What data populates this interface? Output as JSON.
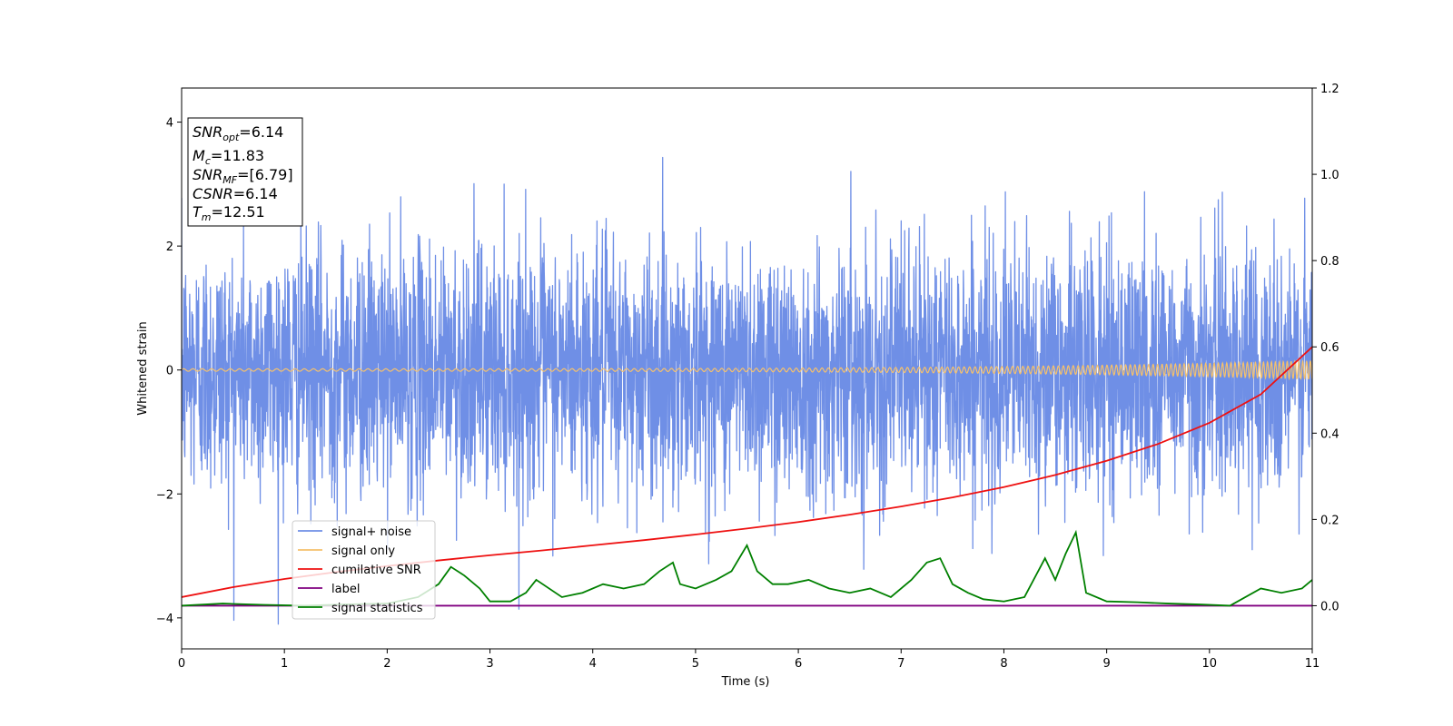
{
  "chart_data": {
    "type": "line",
    "xlabel": "Time (s)",
    "ylabel": "Whitened strain",
    "xlim": [
      0,
      11
    ],
    "ylim_left": [
      -4.5,
      4.55
    ],
    "ylim_right": [
      -0.1,
      1.2
    ],
    "x_ticks": [
      "0",
      "1",
      "2",
      "3",
      "4",
      "5",
      "6",
      "7",
      "8",
      "9",
      "10",
      "11"
    ],
    "y_ticks_left": [
      "−4",
      "−2",
      "0",
      "2",
      "4"
    ],
    "y_ticks_left_values": [
      -4,
      -2,
      0,
      2,
      4
    ],
    "y_ticks_right": [
      "0.0",
      "0.2",
      "0.4",
      "0.6",
      "0.8",
      "1.0",
      "1.2"
    ],
    "y_ticks_right_values": [
      0.0,
      0.2,
      0.4,
      0.6,
      0.8,
      1.0,
      1.2
    ],
    "legend_position": "lower-left",
    "info_box": [
      {
        "main": "SNR",
        "sub": "opt",
        "rest": "=6.14"
      },
      {
        "main": "M",
        "sub": "c",
        "rest": "=11.83"
      },
      {
        "main": "SNR",
        "sub": "MF",
        "rest": "=[6.79]"
      },
      {
        "main": "CSNR",
        "sub": "",
        "rest": "=6.14"
      },
      {
        "main": "T",
        "sub": "m",
        "rest": "=12.51"
      }
    ],
    "series": [
      {
        "name": "signal+ noise",
        "color": "#6f8fe6",
        "axis": "left",
        "kind": "noise",
        "noise_sigma": 1.0,
        "amplitude_range": [
          -4.1,
          4.15
        ]
      },
      {
        "name": "signal only",
        "color": "#f5c16c",
        "axis": "left",
        "kind": "chirp",
        "amplitude_start": 0.02,
        "amplitude_end": 0.15
      },
      {
        "name": "cumilative SNR",
        "color": "#ee1111",
        "axis": "right",
        "x": [
          0,
          0.5,
          1,
          1.5,
          2,
          2.5,
          3,
          3.5,
          4,
          4.5,
          5,
          5.5,
          6,
          6.5,
          7,
          7.5,
          8,
          8.5,
          9,
          9.5,
          10,
          10.5,
          11
        ],
        "y": [
          0.02,
          0.043,
          0.062,
          0.078,
          0.092,
          0.105,
          0.117,
          0.128,
          0.14,
          0.152,
          0.165,
          0.179,
          0.194,
          0.211,
          0.23,
          0.251,
          0.275,
          0.303,
          0.336,
          0.375,
          0.424,
          0.49,
          0.6
        ]
      },
      {
        "name": "label",
        "color": "#800080",
        "axis": "right",
        "x": [
          0,
          11
        ],
        "y": [
          0.0,
          0.0
        ]
      },
      {
        "name": "signal statistics",
        "color": "#008000",
        "axis": "right",
        "x": [
          0,
          0.4,
          0.8,
          1.2,
          1.6,
          2.0,
          2.3,
          2.5,
          2.62,
          2.75,
          2.9,
          3.0,
          3.2,
          3.35,
          3.45,
          3.7,
          3.9,
          4.1,
          4.3,
          4.5,
          4.65,
          4.78,
          4.85,
          5.0,
          5.2,
          5.35,
          5.5,
          5.6,
          5.75,
          5.9,
          6.1,
          6.3,
          6.5,
          6.7,
          6.9,
          7.1,
          7.25,
          7.38,
          7.5,
          7.65,
          7.8,
          8.0,
          8.2,
          8.4,
          8.5,
          8.6,
          8.7,
          8.8,
          9.0,
          9.3,
          9.6,
          9.9,
          10.2,
          10.5,
          10.7,
          10.9,
          11.0
        ],
        "y": [
          0.0,
          0.005,
          0.002,
          0.0,
          0.003,
          0.005,
          0.02,
          0.05,
          0.09,
          0.07,
          0.04,
          0.01,
          0.01,
          0.03,
          0.06,
          0.02,
          0.03,
          0.05,
          0.04,
          0.05,
          0.08,
          0.1,
          0.05,
          0.04,
          0.06,
          0.08,
          0.14,
          0.08,
          0.05,
          0.05,
          0.06,
          0.04,
          0.03,
          0.04,
          0.02,
          0.06,
          0.1,
          0.11,
          0.05,
          0.03,
          0.015,
          0.01,
          0.02,
          0.11,
          0.06,
          0.12,
          0.17,
          0.03,
          0.01,
          0.008,
          0.005,
          0.003,
          0.0,
          0.04,
          0.03,
          0.04,
          0.06
        ]
      }
    ]
  }
}
